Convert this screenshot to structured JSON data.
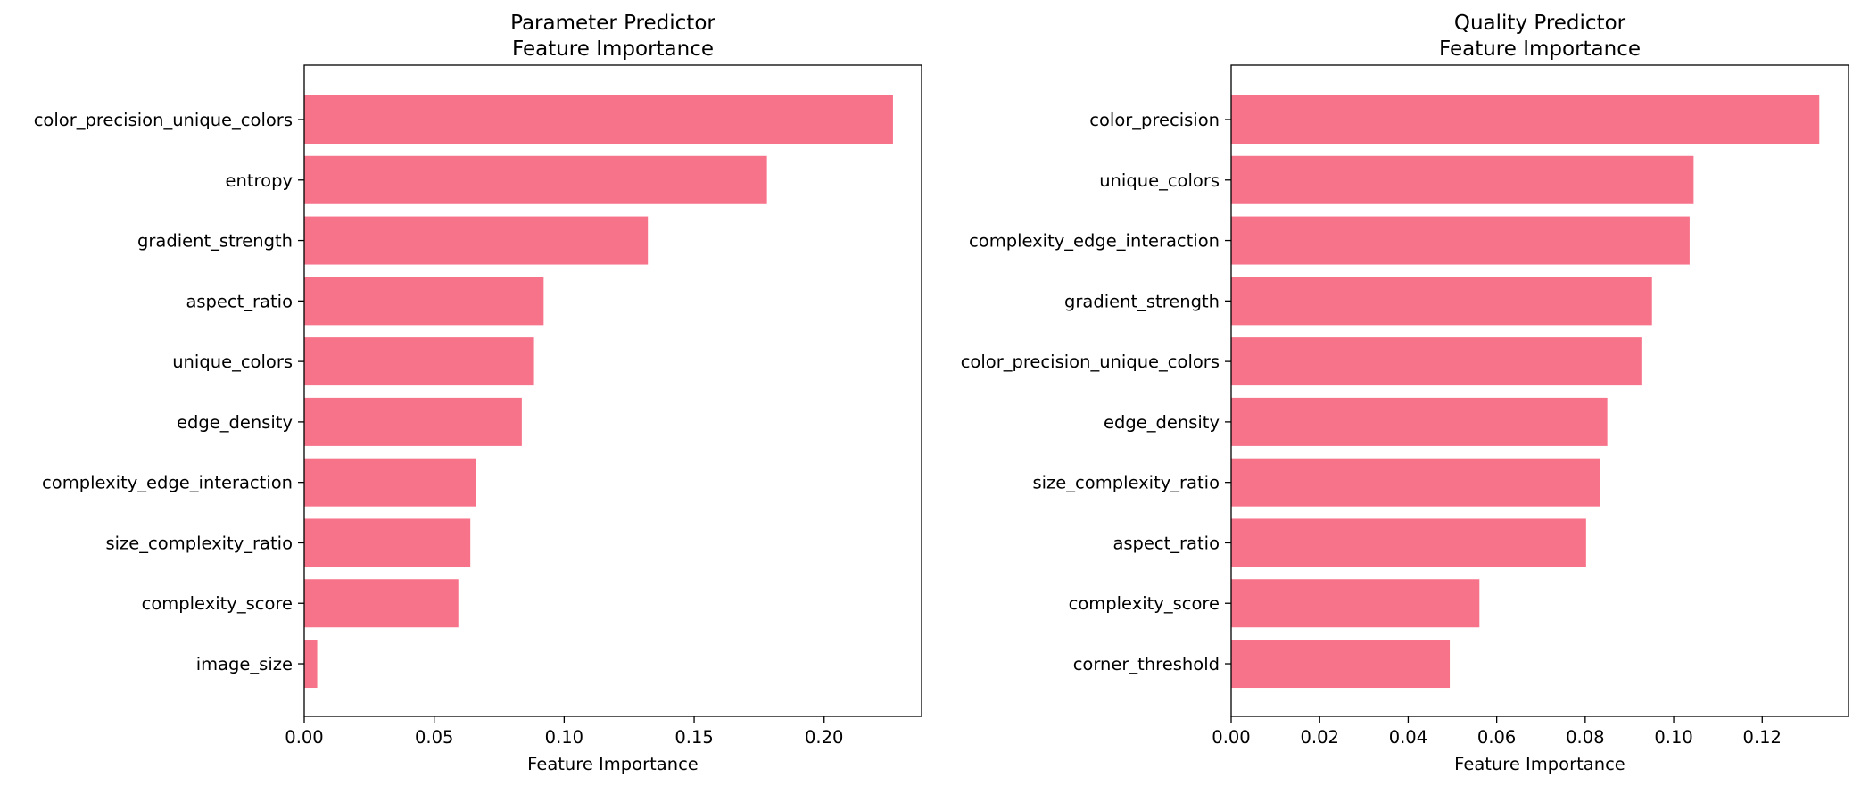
{
  "colors": {
    "bar": "#f7738a",
    "axis": "#000000",
    "background": "#ffffff"
  },
  "chart_data": [
    {
      "type": "bar",
      "orientation": "horizontal",
      "title": "Parameter Predictor\nFeature Importance",
      "xlabel": "Feature Importance",
      "ylabel": "",
      "xlim": [
        0,
        0.2375
      ],
      "xticks": [
        0.0,
        0.05,
        0.1,
        0.15,
        0.2
      ],
      "xtick_labels": [
        "0.00",
        "0.05",
        "0.10",
        "0.15",
        "0.20"
      ],
      "grid": false,
      "categories": [
        "color_precision_unique_colors",
        "entropy",
        "gradient_strength",
        "aspect_ratio",
        "unique_colors",
        "edge_density",
        "complexity_edge_interaction",
        "size_complexity_ratio",
        "complexity_score",
        "image_size"
      ],
      "values": [
        0.2265,
        0.178,
        0.1322,
        0.0921,
        0.0884,
        0.0837,
        0.0661,
        0.0639,
        0.0593,
        0.005
      ]
    },
    {
      "type": "bar",
      "orientation": "horizontal",
      "title": "Quality Predictor\nFeature Importance",
      "xlabel": "Feature Importance",
      "ylabel": "",
      "xlim": [
        0,
        0.1395
      ],
      "xticks": [
        0.0,
        0.02,
        0.04,
        0.06,
        0.08,
        0.1,
        0.12
      ],
      "xtick_labels": [
        "0.00",
        "0.02",
        "0.04",
        "0.06",
        "0.08",
        "0.10",
        "0.12"
      ],
      "grid": false,
      "categories": [
        "color_precision",
        "unique_colors",
        "complexity_edge_interaction",
        "gradient_strength",
        "color_precision_unique_colors",
        "edge_density",
        "size_complexity_ratio",
        "aspect_ratio",
        "complexity_score",
        "corner_threshold"
      ],
      "values": [
        0.1329,
        0.1045,
        0.1036,
        0.0951,
        0.0927,
        0.085,
        0.0834,
        0.0802,
        0.0561,
        0.0494
      ]
    }
  ]
}
